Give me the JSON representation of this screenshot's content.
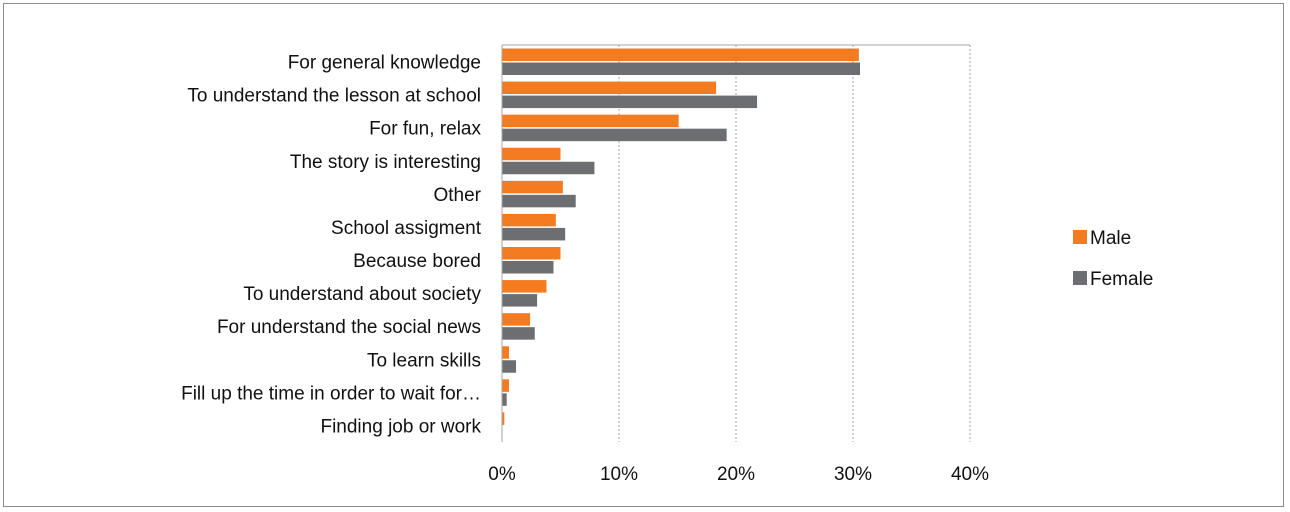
{
  "chart_data": {
    "type": "bar",
    "orientation": "horizontal",
    "categories": [
      "For general knowledge",
      "To understand the lesson at school",
      "For fun, relax",
      "The story is interesting",
      "Other",
      "School assigment",
      "Because bored",
      "To understand about society",
      "For understand the social news",
      "To learn skills",
      "Fill up the time in order to wait for…",
      "Finding job or work"
    ],
    "series": [
      {
        "name": "Male",
        "color": "#f47b20",
        "values": [
          30.5,
          18.3,
          15.1,
          5.0,
          5.2,
          4.6,
          5.0,
          3.8,
          2.4,
          0.6,
          0.6,
          0.2
        ]
      },
      {
        "name": "Female",
        "color": "#6d6e71",
        "values": [
          30.6,
          21.8,
          19.2,
          7.9,
          6.3,
          5.4,
          4.4,
          3.0,
          2.8,
          1.2,
          0.4,
          0.0
        ]
      }
    ],
    "xlim": [
      0,
      40
    ],
    "xticks": [
      "0%",
      "10%",
      "20%",
      "30%",
      "40%"
    ],
    "title": "",
    "xlabel": "",
    "ylabel": "",
    "grid": "vertical dotted",
    "legend_position": "right"
  }
}
